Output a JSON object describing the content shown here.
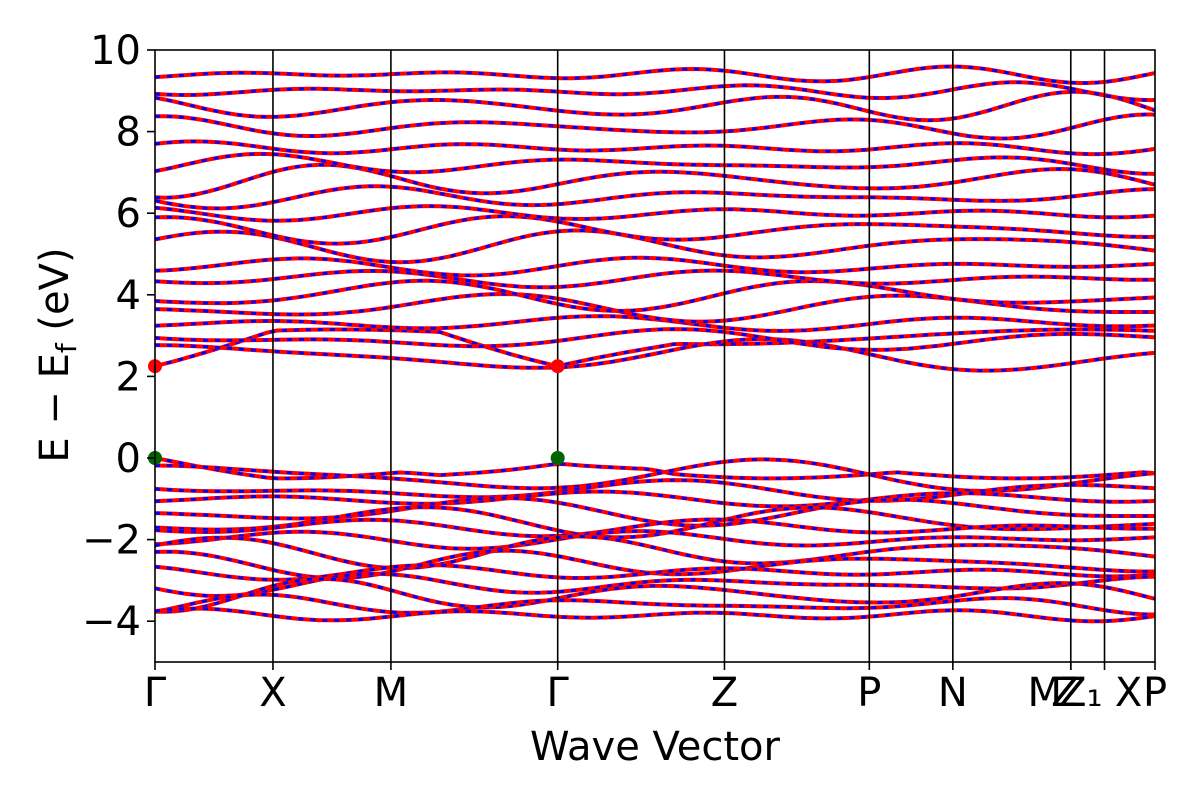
{
  "chart_data": {
    "type": "line",
    "title": "",
    "xlabel": "Wave Vector",
    "ylabel": {
      "main": "E − E",
      "sub": "f",
      "unit": " (eV)"
    },
    "ylim": [
      -5,
      10
    ],
    "yticks": [
      -4,
      -2,
      0,
      2,
      4,
      6,
      8,
      10
    ],
    "ytick_labels": [
      "−4",
      "−2",
      "0",
      "2",
      "4",
      "6",
      "8",
      "10"
    ],
    "kpath": [
      {
        "label": "Γ",
        "x": 0.0
      },
      {
        "label": "X",
        "x": 1.0
      },
      {
        "label": "M",
        "x": 2.0
      },
      {
        "label": "Γ",
        "x": 3.414
      },
      {
        "label": "Z",
        "x": 4.828
      },
      {
        "label": "P",
        "x": 6.056
      },
      {
        "label": "N",
        "x": 6.764
      },
      {
        "label": "M",
        "x": 7.764
      },
      {
        "label": "Z",
        "x": 7.764
      },
      {
        "label": "Z₁",
        "x": 7.764
      },
      {
        "label": "X",
        "x": 8.05
      },
      {
        "label": "P",
        "x": 8.478
      }
    ],
    "segment_break_x": 7.764,
    "xlim": [
      0,
      8.478
    ],
    "spin_channels": [
      {
        "name": "spin-up",
        "color": "#ff0000",
        "style": "solid"
      },
      {
        "name": "spin-down",
        "color": "#0000ff",
        "style": "dashed"
      }
    ],
    "special_points": [
      {
        "type": "VBM",
        "x": 0.0,
        "y": 0.0,
        "color": "#006400"
      },
      {
        "type": "VBM",
        "x": 3.414,
        "y": 0.0,
        "color": "#006400"
      },
      {
        "type": "CBM",
        "x": 0.0,
        "y": 2.25,
        "color": "#ff0000"
      },
      {
        "type": "CBM",
        "x": 3.414,
        "y": 2.25,
        "color": "#ff0000"
      }
    ],
    "valence_band_bottoms": [
      -0.0,
      -0.45,
      -0.8,
      -1.0,
      -1.3,
      -1.55,
      -1.7,
      -2.0,
      -2.3,
      -2.6,
      -2.8,
      -3.1,
      -3.35,
      -3.6,
      -3.85
    ],
    "conduction_band_bottoms": [
      2.25,
      2.5,
      2.9,
      3.3,
      3.7,
      4.0,
      4.4,
      4.7,
      5.2,
      5.6,
      6.0,
      6.4,
      6.8,
      7.2,
      7.6,
      8.1,
      8.6,
      9.0,
      9.4
    ]
  }
}
